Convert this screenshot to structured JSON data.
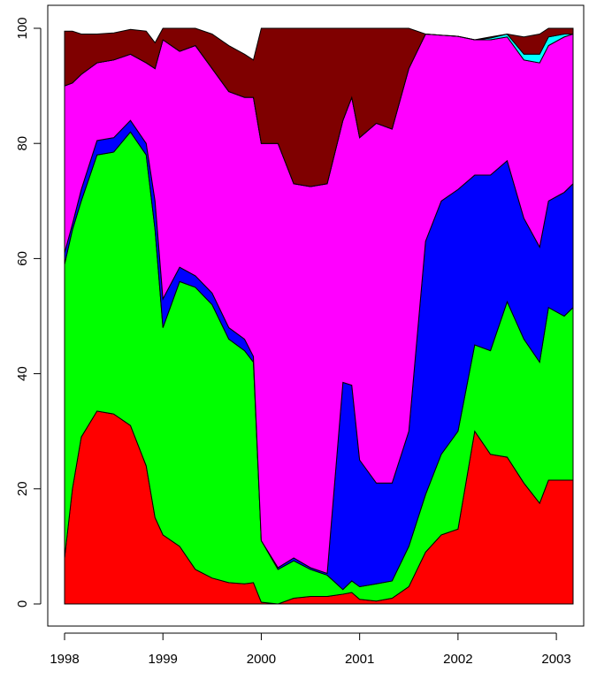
{
  "chart_data": {
    "type": "stacked_area",
    "x": [
      1998.0,
      1998.08,
      1998.17,
      1998.33,
      1998.5,
      1998.67,
      1998.83,
      1998.92,
      1999.0,
      1999.17,
      1999.33,
      1999.5,
      1999.67,
      1999.83,
      1999.92,
      2000.0,
      2000.17,
      2000.33,
      2000.5,
      2000.67,
      2000.83,
      2000.92,
      2001.0,
      2001.17,
      2001.33,
      2001.5,
      2001.67,
      2001.83,
      2002.0,
      2002.17,
      2002.33,
      2002.5,
      2002.67,
      2002.83,
      2002.92,
      2003.08,
      2003.17
    ],
    "series": [
      {
        "color": "#ff0000",
        "values": [
          8,
          20,
          29,
          33.5,
          33,
          31,
          24,
          15,
          12,
          10,
          6,
          4.5,
          3.7,
          3.5,
          3.7,
          0.3,
          0,
          1,
          1.3,
          1.3,
          1.7,
          2,
          0.8,
          0.5,
          1,
          3,
          9,
          12,
          13,
          30,
          26,
          25.5,
          21,
          17.5,
          21.5,
          21.5,
          21.5
        ]
      },
      {
        "color": "#00ff00",
        "values": [
          51,
          45,
          41,
          44.5,
          45.5,
          51,
          54,
          50,
          36,
          46,
          49,
          47.5,
          42.3,
          40.5,
          38.3,
          10.7,
          6,
          6.5,
          4.7,
          3.7,
          0.8,
          2,
          2.2,
          3,
          3,
          7,
          10,
          14,
          17,
          15,
          18,
          27,
          25,
          24.5,
          30,
          28.5,
          30
        ]
      },
      {
        "color": "#0000ff",
        "values": [
          2,
          1,
          2,
          2.5,
          2.5,
          2,
          2,
          5,
          5,
          2.5,
          2,
          2,
          2,
          2,
          1,
          0,
          0.3,
          0.5,
          0.3,
          0.3,
          36,
          34,
          22,
          17.5,
          17,
          20,
          44,
          44,
          42,
          29.5,
          30.5,
          24.5,
          21,
          20,
          18.5,
          21.5,
          21.5
        ]
      },
      {
        "color": "#ff00ff",
        "values": [
          29,
          24.5,
          20,
          13.5,
          13.5,
          11.5,
          14,
          23,
          45,
          37.5,
          40,
          39,
          41,
          42,
          45,
          69,
          73.7,
          65,
          66.2,
          67.7,
          45.5,
          50,
          56,
          62.5,
          61.5,
          63,
          36,
          28.8,
          26.6,
          23.5,
          23.5,
          21.5,
          27.5,
          32,
          27,
          27,
          26
        ]
      },
      {
        "color": "#00ffff",
        "values": [
          0,
          0,
          0,
          0,
          0,
          0,
          0,
          0,
          0,
          0,
          0,
          0,
          0,
          0,
          0,
          0,
          0,
          0,
          0,
          0,
          0,
          0,
          0,
          0,
          0,
          0,
          0,
          0,
          0,
          0,
          0.3,
          0.5,
          1,
          1.5,
          1.5,
          0.5,
          0
        ]
      },
      {
        "color": "#7f0000",
        "values": [
          9.5,
          9,
          7,
          5,
          4.7,
          4.3,
          5.5,
          4.5,
          2,
          4,
          3,
          6,
          8,
          7.5,
          6.5,
          20,
          20,
          27,
          27.5,
          27,
          16,
          12,
          19,
          16.5,
          17.5,
          7,
          0,
          0,
          0,
          0,
          0.2,
          0,
          3,
          3.5,
          1.5,
          1,
          1
        ]
      }
    ],
    "xlim": [
      1998,
      2003.17
    ],
    "xticks": [
      1998,
      1999,
      2000,
      2001,
      2002,
      2003
    ],
    "ylim": [
      0,
      100
    ],
    "yticks": [
      0,
      20,
      40,
      60,
      80,
      100
    ]
  }
}
